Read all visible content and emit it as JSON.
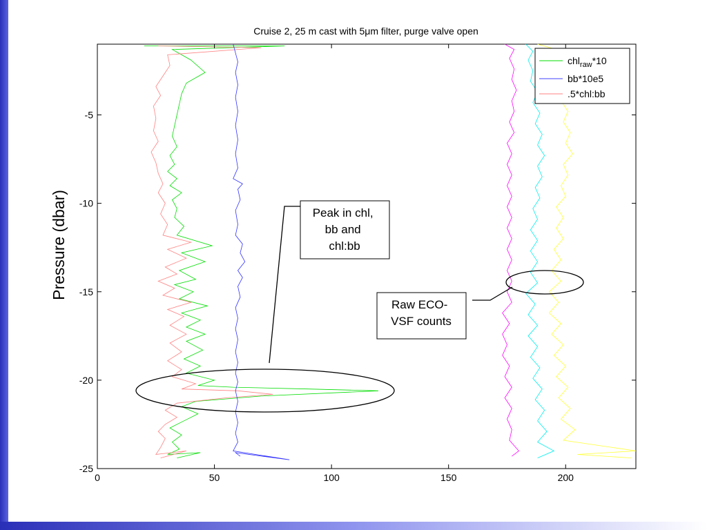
{
  "slide_frame_color": "#3a3fc8",
  "chart_data": {
    "type": "line",
    "title_pre": "Cruise 2, 25 m cast with 5",
    "title_mu": "μ",
    "title_post": "m filter, purge valve open",
    "xlabel": "",
    "ylabel": "Pressure (dbar)",
    "xlim": [
      0,
      230
    ],
    "ylim": [
      -25,
      -1
    ],
    "xticks": [
      0,
      50,
      100,
      150,
      200
    ],
    "yticks": [
      -5,
      -10,
      -15,
      -20,
      -25
    ],
    "grid": false,
    "legend": {
      "position": "top-right",
      "entries": [
        {
          "label": "chl",
          "sub": "raw",
          "suffix": "*10",
          "color": "#00dd00"
        },
        {
          "label": "bb*10e5",
          "sub": "",
          "suffix": "",
          "color": "#4040ff"
        },
        {
          "label": ".5*chl:bb",
          "sub": "",
          "suffix": "",
          "color": "#ff8080"
        }
      ]
    },
    "series": [
      {
        "color": "#00dd00",
        "points": [
          [
            20,
            -1.1
          ],
          [
            80,
            -1.1
          ],
          [
            32,
            -1.3
          ],
          [
            36,
            -1.6
          ],
          [
            40,
            -1.9
          ],
          [
            46,
            -2.6
          ],
          [
            38,
            -3.2
          ],
          [
            36,
            -3.8
          ],
          [
            35,
            -4.4
          ],
          [
            34,
            -5.0
          ],
          [
            33,
            -5.6
          ],
          [
            32,
            -6.2
          ],
          [
            34,
            -6.8
          ],
          [
            31,
            -7.3
          ],
          [
            33,
            -7.8
          ],
          [
            30,
            -8.2
          ],
          [
            34,
            -8.6
          ],
          [
            31,
            -9.0
          ],
          [
            36,
            -9.4
          ],
          [
            32,
            -9.8
          ],
          [
            34,
            -10.3
          ],
          [
            33,
            -10.8
          ],
          [
            37,
            -11.3
          ],
          [
            34,
            -11.8
          ],
          [
            49,
            -12.4
          ],
          [
            36,
            -12.8
          ],
          [
            46,
            -13.3
          ],
          [
            35,
            -13.8
          ],
          [
            42,
            -14.3
          ],
          [
            33,
            -14.6
          ],
          [
            41,
            -15.0
          ],
          [
            35,
            -15.4
          ],
          [
            47,
            -15.8
          ],
          [
            36,
            -16.2
          ],
          [
            44,
            -16.6
          ],
          [
            38,
            -17.0
          ],
          [
            46,
            -17.4
          ],
          [
            38,
            -17.8
          ],
          [
            45,
            -18.3
          ],
          [
            37,
            -18.8
          ],
          [
            44,
            -19.2
          ],
          [
            38,
            -19.6
          ],
          [
            50,
            -20.0
          ],
          [
            43,
            -20.3
          ],
          [
            58,
            -20.4
          ],
          [
            90,
            -20.5
          ],
          [
            120,
            -20.6
          ],
          [
            70,
            -20.9
          ],
          [
            42,
            -21.2
          ],
          [
            36,
            -21.5
          ],
          [
            43,
            -21.9
          ],
          [
            37,
            -22.3
          ],
          [
            31,
            -22.7
          ],
          [
            36,
            -23.1
          ],
          [
            32,
            -23.5
          ],
          [
            35,
            -23.9
          ],
          [
            30,
            -24.2
          ],
          [
            44,
            -24.1
          ],
          [
            34,
            -24.4
          ]
        ]
      },
      {
        "color": "#ff8080",
        "points": [
          [
            26,
            -1.1
          ],
          [
            70,
            -1.2
          ],
          [
            30,
            -1.6
          ],
          [
            31,
            -2.2
          ],
          [
            28,
            -2.8
          ],
          [
            25,
            -3.4
          ],
          [
            27,
            -3.9
          ],
          [
            24,
            -4.5
          ],
          [
            25,
            -5.2
          ],
          [
            24,
            -5.9
          ],
          [
            26,
            -6.5
          ],
          [
            23,
            -7.1
          ],
          [
            25,
            -7.7
          ],
          [
            26,
            -8.3
          ],
          [
            28,
            -8.9
          ],
          [
            26,
            -9.4
          ],
          [
            29,
            -10.0
          ],
          [
            27,
            -10.6
          ],
          [
            30,
            -11.2
          ],
          [
            28,
            -11.8
          ],
          [
            40,
            -12.2
          ],
          [
            30,
            -12.6
          ],
          [
            38,
            -13.1
          ],
          [
            29,
            -13.6
          ],
          [
            34,
            -14.0
          ],
          [
            26,
            -14.4
          ],
          [
            33,
            -14.8
          ],
          [
            28,
            -15.2
          ],
          [
            40,
            -15.6
          ],
          [
            30,
            -16.0
          ],
          [
            37,
            -16.4
          ],
          [
            31,
            -16.9
          ],
          [
            38,
            -17.4
          ],
          [
            31,
            -17.9
          ],
          [
            36,
            -18.4
          ],
          [
            30,
            -18.9
          ],
          [
            36,
            -19.4
          ],
          [
            32,
            -19.8
          ],
          [
            42,
            -20.2
          ],
          [
            36,
            -20.5
          ],
          [
            60,
            -20.6
          ],
          [
            75,
            -20.8
          ],
          [
            55,
            -21.0
          ],
          [
            34,
            -21.3
          ],
          [
            29,
            -21.7
          ],
          [
            34,
            -22.1
          ],
          [
            29,
            -22.5
          ],
          [
            26,
            -22.9
          ],
          [
            29,
            -23.3
          ],
          [
            27,
            -23.8
          ],
          [
            25,
            -24.2
          ],
          [
            38,
            -24.0
          ],
          [
            27,
            -24.4
          ]
        ]
      },
      {
        "color": "#3030ff",
        "points": [
          [
            58,
            -1.0
          ],
          [
            59,
            -1.5
          ],
          [
            60,
            -2.0
          ],
          [
            59,
            -2.6
          ],
          [
            60,
            -3.3
          ],
          [
            59,
            -4.0
          ],
          [
            60,
            -4.8
          ],
          [
            59,
            -5.6
          ],
          [
            60,
            -6.4
          ],
          [
            59,
            -7.2
          ],
          [
            60,
            -8.0
          ],
          [
            58,
            -8.6
          ],
          [
            62,
            -8.9
          ],
          [
            60,
            -9.2
          ],
          [
            61,
            -9.8
          ],
          [
            59,
            -10.4
          ],
          [
            60,
            -11.2
          ],
          [
            59,
            -11.8
          ],
          [
            62,
            -12.3
          ],
          [
            61,
            -12.8
          ],
          [
            63,
            -13.3
          ],
          [
            60,
            -13.8
          ],
          [
            62,
            -14.2
          ],
          [
            60,
            -14.7
          ],
          [
            61,
            -15.3
          ],
          [
            59,
            -15.9
          ],
          [
            60,
            -16.5
          ],
          [
            59,
            -17.1
          ],
          [
            60,
            -17.7
          ],
          [
            59,
            -18.4
          ],
          [
            60,
            -19.0
          ],
          [
            59,
            -19.6
          ],
          [
            60,
            -20.1
          ],
          [
            59,
            -20.6
          ],
          [
            60,
            -21.2
          ],
          [
            59,
            -21.8
          ],
          [
            60,
            -22.4
          ],
          [
            59,
            -23.0
          ],
          [
            60,
            -23.5
          ],
          [
            58,
            -24.0
          ],
          [
            82,
            -24.5
          ],
          [
            59,
            -24.1
          ],
          [
            61,
            -24.3
          ]
        ]
      },
      {
        "color": "#ff00ff",
        "points": [
          [
            174,
            -1.0
          ],
          [
            178,
            -1.3
          ],
          [
            176,
            -1.8
          ],
          [
            178,
            -2.4
          ],
          [
            177,
            -3.0
          ],
          [
            179,
            -3.6
          ],
          [
            177,
            -4.2
          ],
          [
            178,
            -4.8
          ],
          [
            176,
            -5.4
          ],
          [
            178,
            -6.0
          ],
          [
            175,
            -6.6
          ],
          [
            177,
            -7.2
          ],
          [
            175,
            -7.8
          ],
          [
            177,
            -8.4
          ],
          [
            175,
            -9.0
          ],
          [
            177,
            -9.6
          ],
          [
            175,
            -10.2
          ],
          [
            177,
            -10.8
          ],
          [
            175,
            -11.4
          ],
          [
            177,
            -12.0
          ],
          [
            175,
            -12.6
          ],
          [
            177,
            -13.2
          ],
          [
            175,
            -13.8
          ],
          [
            177,
            -14.4
          ],
          [
            175,
            -15.0
          ],
          [
            177,
            -15.6
          ],
          [
            173,
            -16.2
          ],
          [
            176,
            -16.8
          ],
          [
            173,
            -17.4
          ],
          [
            175,
            -18.0
          ],
          [
            173,
            -18.6
          ],
          [
            176,
            -19.2
          ],
          [
            174,
            -19.8
          ],
          [
            177,
            -20.4
          ],
          [
            174,
            -21.0
          ],
          [
            177,
            -21.6
          ],
          [
            175,
            -22.2
          ],
          [
            177,
            -22.8
          ],
          [
            176,
            -23.4
          ],
          [
            180,
            -24.0
          ],
          [
            177,
            -24.3
          ]
        ]
      },
      {
        "color": "#00eeee",
        "points": [
          [
            183,
            -1.0
          ],
          [
            186,
            -1.4
          ],
          [
            184,
            -1.9
          ],
          [
            186,
            -2.5
          ],
          [
            185,
            -3.1
          ],
          [
            188,
            -3.7
          ],
          [
            186,
            -4.3
          ],
          [
            189,
            -4.9
          ],
          [
            187,
            -5.5
          ],
          [
            190,
            -6.1
          ],
          [
            188,
            -6.7
          ],
          [
            191,
            -7.3
          ],
          [
            188,
            -7.9
          ],
          [
            190,
            -8.5
          ],
          [
            187,
            -9.1
          ],
          [
            189,
            -9.7
          ],
          [
            186,
            -10.3
          ],
          [
            188,
            -10.9
          ],
          [
            185,
            -11.5
          ],
          [
            188,
            -12.1
          ],
          [
            185,
            -12.7
          ],
          [
            188,
            -13.3
          ],
          [
            185,
            -13.9
          ],
          [
            188,
            -14.5
          ],
          [
            183,
            -15.1
          ],
          [
            187,
            -15.7
          ],
          [
            184,
            -16.3
          ],
          [
            188,
            -16.9
          ],
          [
            184,
            -17.5
          ],
          [
            188,
            -18.1
          ],
          [
            185,
            -18.7
          ],
          [
            189,
            -19.3
          ],
          [
            186,
            -19.9
          ],
          [
            190,
            -20.5
          ],
          [
            187,
            -21.1
          ],
          [
            191,
            -21.7
          ],
          [
            188,
            -22.3
          ],
          [
            192,
            -22.9
          ],
          [
            188,
            -23.5
          ],
          [
            195,
            -24.0
          ],
          [
            188,
            -24.4
          ]
        ]
      },
      {
        "color": "#ffff33",
        "points": [
          [
            188,
            -1.0
          ],
          [
            196,
            -1.3
          ],
          [
            194,
            -1.8
          ],
          [
            198,
            -2.4
          ],
          [
            196,
            -3.0
          ],
          [
            200,
            -3.6
          ],
          [
            198,
            -4.2
          ],
          [
            201,
            -4.8
          ],
          [
            199,
            -5.4
          ],
          [
            202,
            -6.0
          ],
          [
            200,
            -6.6
          ],
          [
            203,
            -7.2
          ],
          [
            199,
            -7.8
          ],
          [
            201,
            -8.4
          ],
          [
            198,
            -9.0
          ],
          [
            200,
            -9.6
          ],
          [
            196,
            -10.2
          ],
          [
            199,
            -10.8
          ],
          [
            196,
            -11.4
          ],
          [
            199,
            -12.0
          ],
          [
            195,
            -12.6
          ],
          [
            198,
            -13.2
          ],
          [
            194,
            -13.8
          ],
          [
            198,
            -14.4
          ],
          [
            193,
            -15.0
          ],
          [
            197,
            -15.6
          ],
          [
            193,
            -16.2
          ],
          [
            198,
            -16.8
          ],
          [
            194,
            -17.4
          ],
          [
            199,
            -18.0
          ],
          [
            195,
            -18.6
          ],
          [
            200,
            -19.2
          ],
          [
            196,
            -19.8
          ],
          [
            201,
            -20.4
          ],
          [
            197,
            -21.0
          ],
          [
            202,
            -21.6
          ],
          [
            198,
            -22.2
          ],
          [
            204,
            -22.8
          ],
          [
            199,
            -23.4
          ],
          [
            230,
            -24.0
          ],
          [
            205,
            -24.2
          ],
          [
            228,
            -24.4
          ]
        ]
      }
    ],
    "annotations": [
      {
        "text": [
          "Peak in chl,",
          "bb and",
          "chl:bb"
        ]
      },
      {
        "text": [
          "Raw ECO-",
          "VSF counts"
        ]
      }
    ]
  }
}
